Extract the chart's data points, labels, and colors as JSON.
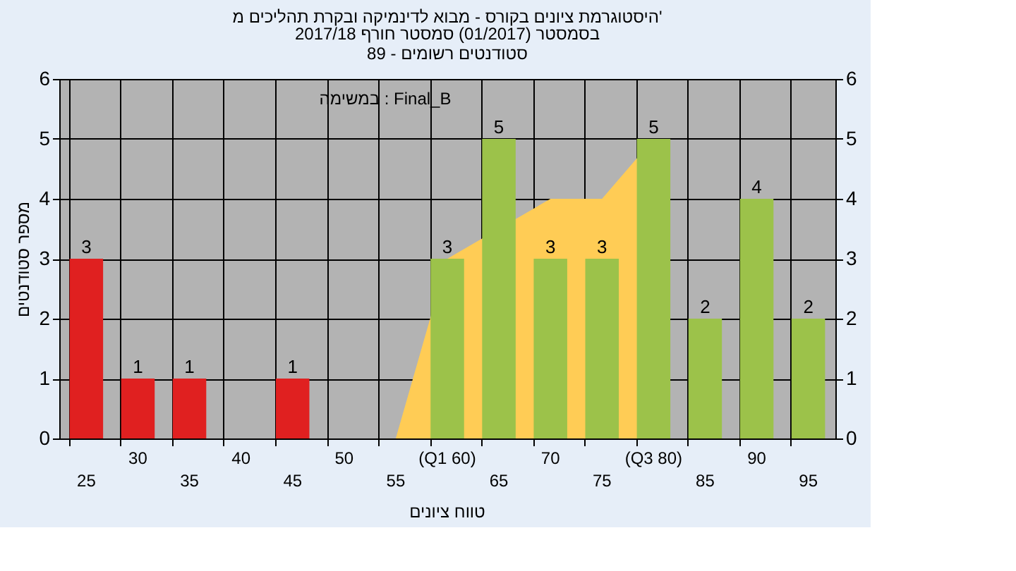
{
  "chart_data": {
    "type": "bar",
    "title": "היסטוגרמת ציונים בקורס - מבוא לדינמיקה ובקרת תהליכים מ'",
    "subtitle": "בסמסטר (01/2017) סמסטר חורף 2017/18\nסטודנטים רשומים - 89",
    "xlabel": "טווח ציונים",
    "ylabel": "מספר סטודנטים",
    "annotations": [
      "במשימה : Final_B"
    ],
    "categories": [
      "25",
      "30",
      "35",
      "40",
      "45",
      "50",
      "55",
      "(Q1 60)",
      "65",
      "70",
      "75",
      "(Q3 80)",
      "85",
      "90",
      "95"
    ],
    "series": [
      {
        "values": [
          3,
          1,
          1,
          0,
          1,
          0,
          0,
          3,
          5,
          3,
          3,
          5,
          2,
          4,
          2
        ],
        "colors": [
          "#e02020",
          "#e02020",
          "#e02020",
          "#e02020",
          "#e02020",
          "#e02020",
          "#e02020",
          "#9cc24a",
          "#9cc24a",
          "#9cc24a",
          "#9cc24a",
          "#9cc24a",
          "#9cc24a",
          "#9cc24a",
          "#9cc24a"
        ],
        "value_labels": [
          "3",
          "1",
          "1",
          null,
          "1",
          null,
          null,
          "3",
          "5",
          "3",
          "3",
          "5",
          "2",
          "4",
          "2"
        ]
      },
      {
        "type": "area",
        "color": "#ffcc55",
        "values": [
          null,
          null,
          null,
          null,
          null,
          null,
          0,
          3,
          null,
          4,
          4,
          5,
          null,
          null,
          null
        ]
      }
    ],
    "ylim": [
      0,
      6
    ],
    "yticks": [
      0,
      1,
      2,
      3,
      4,
      5,
      6
    ],
    "y2lim": [
      0,
      6
    ],
    "y2ticks": [
      0,
      1,
      2,
      3,
      4,
      5,
      6
    ],
    "grid": true
  }
}
